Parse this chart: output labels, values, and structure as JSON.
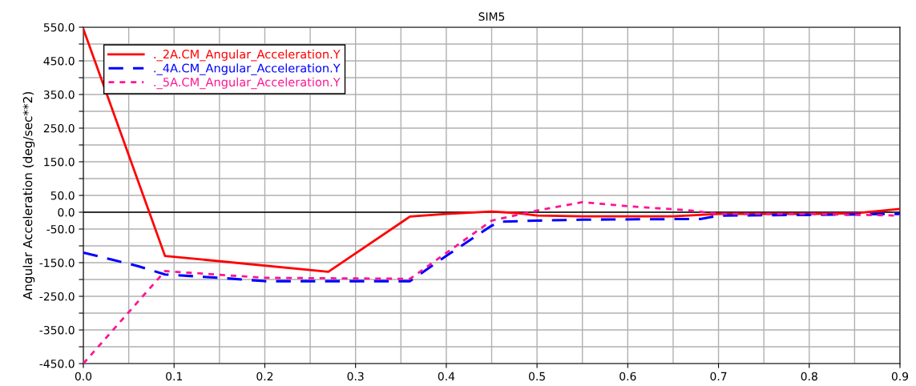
{
  "chart_data": {
    "type": "line",
    "title": "SIM5",
    "ylabel": "Angular Acceleration (deg/sec**2)",
    "xlim": [
      0.0,
      0.9
    ],
    "xticks": [
      {
        "value": 0,
        "label": "0.0"
      },
      0.1,
      0.2,
      0.3,
      0.4,
      0.5,
      0.6,
      0.7,
      0.8,
      0.9
    ],
    "ylim": [
      -450.0,
      550.0
    ],
    "yticks": [
      {
        "value": 550,
        "label": "550.0"
      },
      {
        "value": 500,
        "label": null
      },
      {
        "value": 450,
        "label": "450.0"
      },
      {
        "value": 400,
        "label": null
      },
      {
        "value": 350,
        "label": "350.0"
      },
      {
        "value": 300,
        "label": null
      },
      {
        "value": 250,
        "label": "250.0"
      },
      {
        "value": 200,
        "label": null
      },
      {
        "value": 150,
        "label": "150.0"
      },
      {
        "value": 100,
        "label": null
      },
      {
        "value": 50,
        "label": "50.0"
      },
      {
        "value": 0,
        "label": "0.0"
      },
      {
        "value": -50,
        "label": "-50.0"
      },
      {
        "value": -100,
        "label": null
      },
      {
        "value": -150,
        "label": "-150.0"
      },
      {
        "value": -200,
        "label": null
      },
      {
        "value": -250,
        "label": "-250.0"
      },
      {
        "value": -300,
        "label": null
      },
      {
        "value": -350,
        "label": "-350.0"
      },
      {
        "value": -400,
        "label": null
      },
      {
        "value": -450,
        "label": "-450.0"
      }
    ],
    "grid": true,
    "legend": "top left",
    "ref_lines": [
      {
        "axis": "y",
        "value": 0,
        "color": "#000000"
      }
    ],
    "series": [
      {
        "name": "._2A.CM_Angular_Acceleration.Y",
        "color": "#ff0000",
        "line_style": "solid",
        "x": [
          0,
          0.09,
          0.27,
          0.36,
          0.4,
          0.45,
          0.48,
          0.5,
          0.55,
          0.65,
          0.7,
          0.8,
          0.85,
          0.9
        ],
        "values": [
          545,
          -130,
          -177,
          -13,
          -5,
          2,
          -3,
          -10,
          -12,
          -12,
          -5,
          -5,
          -3,
          10
        ]
      },
      {
        "name": "._4A.CM_Angular_Acceleration.Y",
        "color": "#0000ff",
        "line_style": "dashed",
        "x": [
          0,
          0.03,
          0.06,
          0.09,
          0.15,
          0.2,
          0.36,
          0.4,
          0.45,
          0.46,
          0.5,
          0.55,
          0.68,
          0.7,
          0.8,
          0.9
        ],
        "values": [
          -120,
          -140,
          -160,
          -185,
          -195,
          -205,
          -205,
          -130,
          -40,
          -28,
          -25,
          -22,
          -20,
          -10,
          -8,
          -5
        ]
      },
      {
        "name": "._5A.CM_Angular_Acceleration.Y",
        "color": "#ff1493",
        "line_style": "dotted",
        "x": [
          0,
          0.09,
          0.2,
          0.36,
          0.45,
          0.5,
          0.55,
          0.6,
          0.67,
          0.7,
          0.8,
          0.9
        ],
        "values": [
          -450,
          -175,
          -195,
          -198,
          -25,
          5,
          30,
          18,
          5,
          -5,
          -5,
          -10
        ]
      }
    ]
  }
}
